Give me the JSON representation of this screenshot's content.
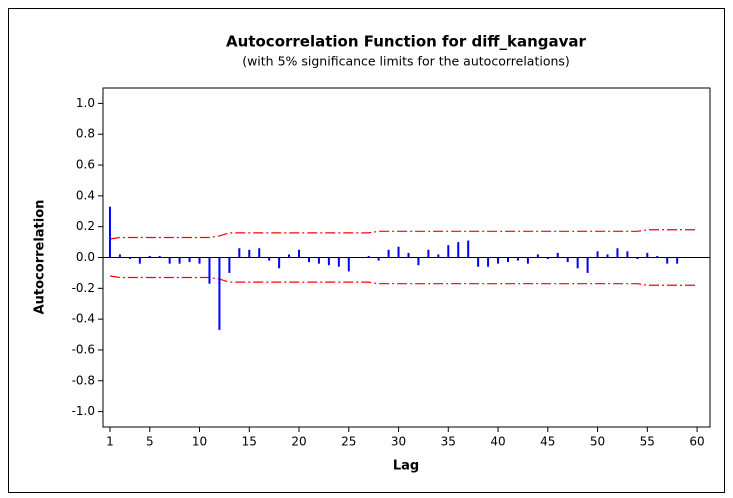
{
  "chart_data": {
    "type": "acf",
    "title": "Autocorrelation Function for diff_kangavar",
    "subtitle": "(with 5% significance limits for the autocorrelations)",
    "x_label": "Lag",
    "y_label": "Autocorrelation",
    "x": [
      1,
      2,
      3,
      4,
      5,
      6,
      7,
      8,
      9,
      10,
      11,
      12,
      13,
      14,
      15,
      16,
      17,
      18,
      19,
      20,
      21,
      22,
      23,
      24,
      25,
      26,
      27,
      28,
      29,
      30,
      31,
      32,
      33,
      34,
      35,
      36,
      37,
      38,
      39,
      40,
      41,
      42,
      43,
      44,
      45,
      46,
      47,
      48,
      49,
      50,
      51,
      52,
      53,
      54,
      55,
      56,
      57,
      58,
      59,
      60
    ],
    "values": [
      0.33,
      0.02,
      -0.01,
      -0.04,
      0.01,
      0.01,
      -0.04,
      -0.04,
      -0.03,
      -0.04,
      -0.17,
      -0.47,
      -0.1,
      0.06,
      0.05,
      0.06,
      -0.02,
      -0.07,
      0.02,
      0.05,
      -0.03,
      -0.04,
      -0.05,
      -0.06,
      -0.09,
      0.0,
      0.01,
      -0.02,
      0.05,
      0.07,
      0.03,
      -0.05,
      0.05,
      0.02,
      0.08,
      0.1,
      0.11,
      -0.06,
      -0.06,
      -0.04,
      -0.03,
      -0.02,
      -0.04,
      0.02,
      -0.01,
      0.03,
      -0.03,
      -0.07,
      -0.1,
      0.04,
      0.02,
      0.06,
      0.04,
      -0.01,
      0.03,
      0.01,
      -0.04,
      -0.04,
      0.0,
      0.0
    ],
    "upper_limit": [
      0.12,
      0.13,
      0.13,
      0.13,
      0.13,
      0.13,
      0.13,
      0.13,
      0.13,
      0.13,
      0.13,
      0.14,
      0.16,
      0.16,
      0.16,
      0.16,
      0.16,
      0.16,
      0.16,
      0.16,
      0.16,
      0.16,
      0.16,
      0.16,
      0.16,
      0.16,
      0.16,
      0.17,
      0.17,
      0.17,
      0.17,
      0.17,
      0.17,
      0.17,
      0.17,
      0.17,
      0.17,
      0.17,
      0.17,
      0.17,
      0.17,
      0.17,
      0.17,
      0.17,
      0.17,
      0.17,
      0.17,
      0.17,
      0.17,
      0.17,
      0.17,
      0.17,
      0.17,
      0.17,
      0.18,
      0.18,
      0.18,
      0.18,
      0.18,
      0.18
    ],
    "lower_limit": [
      -0.12,
      -0.13,
      -0.13,
      -0.13,
      -0.13,
      -0.13,
      -0.13,
      -0.13,
      -0.13,
      -0.13,
      -0.13,
      -0.14,
      -0.16,
      -0.16,
      -0.16,
      -0.16,
      -0.16,
      -0.16,
      -0.16,
      -0.16,
      -0.16,
      -0.16,
      -0.16,
      -0.16,
      -0.16,
      -0.16,
      -0.16,
      -0.17,
      -0.17,
      -0.17,
      -0.17,
      -0.17,
      -0.17,
      -0.17,
      -0.17,
      -0.17,
      -0.17,
      -0.17,
      -0.17,
      -0.17,
      -0.17,
      -0.17,
      -0.17,
      -0.17,
      -0.17,
      -0.17,
      -0.17,
      -0.17,
      -0.17,
      -0.17,
      -0.17,
      -0.17,
      -0.17,
      -0.17,
      -0.18,
      -0.18,
      -0.18,
      -0.18,
      -0.18,
      -0.18
    ],
    "color": "#0000ff",
    "limit_color": "#ff0000",
    "xlim": [
      0.3,
      61.3
    ],
    "ylim": [
      -1.1,
      1.1
    ],
    "xticks": [
      1,
      5,
      10,
      15,
      20,
      25,
      30,
      35,
      40,
      45,
      50,
      55,
      60
    ],
    "yticks": [
      {
        "value": 1.0,
        "label": "1.0"
      },
      {
        "value": 0.8,
        "label": "0.8"
      },
      {
        "value": 0.6,
        "label": "0.6"
      },
      {
        "value": 0.4,
        "label": "0.4"
      },
      {
        "value": 0.2,
        "label": "0.2"
      },
      {
        "value": 0.0,
        "label": "0.0"
      },
      {
        "value": -0.2,
        "label": "-0.2"
      },
      {
        "value": -0.4,
        "label": "-0.4"
      },
      {
        "value": -0.6,
        "label": "-0.6"
      },
      {
        "value": -0.8,
        "label": "-0.8"
      },
      {
        "value": -1.0,
        "label": "-1.0"
      }
    ]
  }
}
